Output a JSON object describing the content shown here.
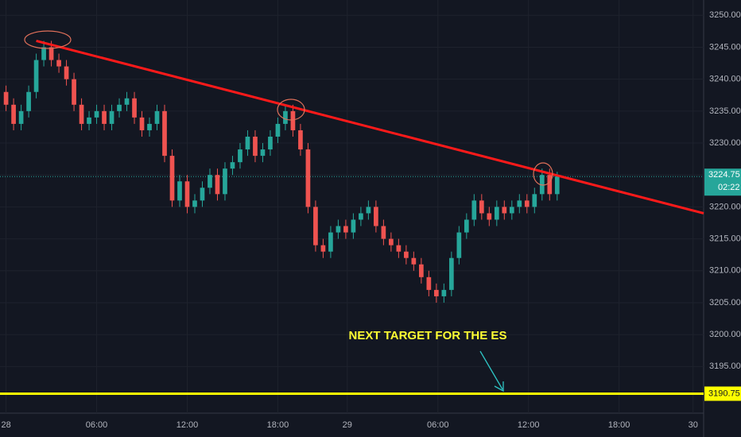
{
  "chart_data": {
    "type": "candlestick",
    "x": [
      0,
      0.5,
      1,
      1.5,
      2,
      2.5,
      3,
      3.5,
      4,
      4.5,
      5,
      5.5,
      6,
      6.5,
      7,
      7.5,
      8,
      8.5,
      9,
      9.5,
      10,
      10.5,
      11,
      11.5,
      12,
      12.5,
      13,
      13.5,
      14,
      14.5,
      15,
      15.5,
      16,
      16.5,
      17,
      17.5,
      18,
      18.5,
      19,
      19.5,
      20,
      20.5,
      21,
      21.5,
      22,
      22.5,
      23,
      23.5,
      24,
      24.5,
      25,
      25.5,
      26,
      26.5,
      27,
      27.5,
      28,
      28.5,
      29,
      29.5,
      30,
      30.5,
      31,
      31.5,
      32,
      32.5,
      33,
      33.5,
      34,
      34.5,
      35,
      35.5,
      36,
      36.5
    ],
    "open": [
      3238,
      3236,
      3233,
      3235,
      3238,
      3243,
      3245,
      3243,
      3242,
      3240,
      3236,
      3233,
      3234,
      3235,
      3233,
      3235,
      3236,
      3237,
      3234,
      3232,
      3233,
      3235,
      3228,
      3221,
      3224,
      3220,
      3221,
      3223,
      3225,
      3222,
      3226,
      3227,
      3229,
      3231,
      3228,
      3229,
      3231,
      3233,
      3235,
      3232,
      3229,
      3220,
      3214,
      3213,
      3216,
      3217,
      3216,
      3218,
      3219,
      3220,
      3217,
      3215,
      3214,
      3213,
      3212,
      3211,
      3209,
      3207,
      3206,
      3207,
      3212,
      3216,
      3218,
      3221,
      3219,
      3218,
      3220,
      3219,
      3220,
      3221,
      3220,
      3222,
      3225,
      3222
    ],
    "high": [
      3239,
      3237,
      3236,
      3239,
      3244,
      3246,
      3246,
      3244,
      3243,
      3241,
      3237,
      3235,
      3236,
      3236,
      3236,
      3237,
      3238,
      3238,
      3235,
      3234,
      3236,
      3236,
      3229,
      3225,
      3225,
      3222,
      3224,
      3226,
      3226,
      3227,
      3228,
      3230,
      3232,
      3232,
      3230,
      3232,
      3234,
      3236,
      3236,
      3233,
      3230,
      3221,
      3215,
      3217,
      3218,
      3218,
      3219,
      3220,
      3221,
      3221,
      3218,
      3216,
      3215,
      3214,
      3213,
      3212,
      3210,
      3208,
      3208,
      3213,
      3217,
      3219,
      3222,
      3222,
      3220,
      3221,
      3221,
      3221,
      3222,
      3222,
      3223,
      3226,
      3226,
      3225.5
    ],
    "low": [
      3235,
      3232,
      3232,
      3234,
      3237,
      3242,
      3242,
      3241,
      3239,
      3235,
      3232,
      3232,
      3233,
      3232,
      3232,
      3234,
      3235,
      3233,
      3231,
      3231,
      3232,
      3227,
      3220,
      3220,
      3219,
      3219,
      3220,
      3222,
      3221,
      3221,
      3225,
      3226,
      3228,
      3227,
      3227,
      3228,
      3230,
      3232,
      3231,
      3228,
      3219,
      3213,
      3212,
      3212,
      3215,
      3215,
      3215,
      3217,
      3218,
      3216,
      3214,
      3213,
      3212,
      3211,
      3210,
      3208,
      3206,
      3205,
      3205,
      3206,
      3211,
      3215,
      3217,
      3218,
      3217,
      3217,
      3218,
      3218,
      3219,
      3219,
      3219,
      3221,
      3221,
      3221
    ],
    "close": [
      3236,
      3233,
      3235,
      3238,
      3243,
      3245,
      3243,
      3242,
      3240,
      3236,
      3233,
      3234,
      3235,
      3233,
      3235,
      3236,
      3237,
      3234,
      3232,
      3233,
      3235,
      3228,
      3221,
      3224,
      3220,
      3221,
      3223,
      3225,
      3222,
      3226,
      3227,
      3229,
      3231,
      3228,
      3229,
      3231,
      3233,
      3235,
      3232,
      3229,
      3220,
      3214,
      3213,
      3216,
      3217,
      3216,
      3218,
      3219,
      3220,
      3217,
      3215,
      3214,
      3213,
      3212,
      3211,
      3209,
      3207,
      3206,
      3207,
      3212,
      3216,
      3218,
      3221,
      3219,
      3218,
      3220,
      3219,
      3220,
      3221,
      3220,
      3222,
      3225,
      3222,
      3224.75
    ],
    "up_color": "#26a69a",
    "down_color": "#ef5350",
    "xlim": [
      -0.4,
      46.2
    ],
    "xticks": [
      {
        "value": 0,
        "label": "28"
      },
      {
        "value": 6,
        "label": "06:00"
      },
      {
        "value": 12,
        "label": "12:00"
      },
      {
        "value": 18,
        "label": "18:00"
      },
      {
        "value": 22.6,
        "label": "29"
      },
      {
        "value": 28.6,
        "label": "06:00"
      },
      {
        "value": 34.6,
        "label": "12:00"
      },
      {
        "value": 40.6,
        "label": "18:00"
      },
      {
        "value": 45.5,
        "label": "30"
      }
    ],
    "ylim": [
      3187.7,
      3252.4
    ],
    "yticks": [
      {
        "value": 3195,
        "label": "3195.00"
      },
      {
        "value": 3200,
        "label": "3200.00"
      },
      {
        "value": 3205,
        "label": "3205.00"
      },
      {
        "value": 3210,
        "label": "3210.00"
      },
      {
        "value": 3215,
        "label": "3215.00"
      },
      {
        "value": 3220,
        "label": "3220.00"
      },
      {
        "value": 3225,
        "label": "3225.00"
      },
      {
        "value": 3230,
        "label": "3230.00"
      },
      {
        "value": 3235,
        "label": "3235.00"
      },
      {
        "value": 3240,
        "label": "3240.00"
      },
      {
        "value": 3245,
        "label": "3245.00"
      },
      {
        "value": 3250,
        "label": "3250.00"
      }
    ],
    "grid": true,
    "trendline": {
      "x": [
        2,
        46.2
      ],
      "y": [
        3246,
        3219
      ],
      "color": "#ff1a1a"
    },
    "target_line": {
      "value": 3190.75,
      "color": "#ffff00"
    },
    "current_price": 3224.75,
    "countdown": "02:22",
    "annotation": "NEXT TARGET FOR THE ES"
  }
}
